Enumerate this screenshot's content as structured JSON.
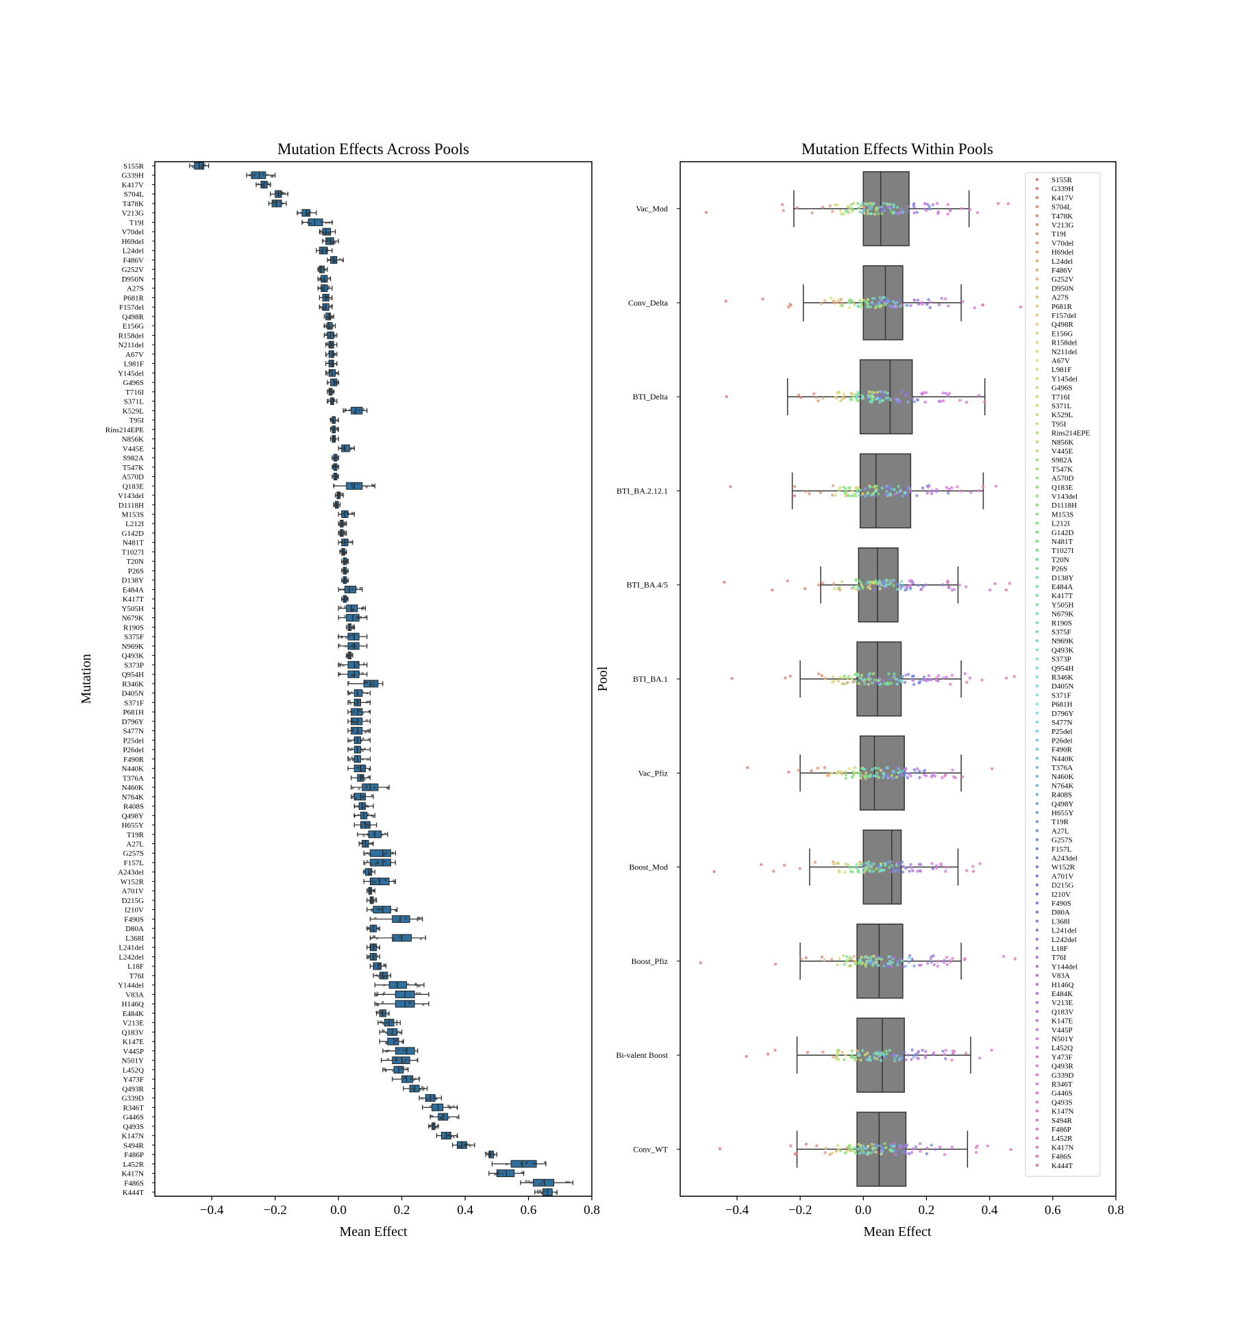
{
  "chart_data": [
    {
      "type": "box",
      "orientation": "horizontal",
      "title": "Mutation Effects Across Pools",
      "xlabel": "Mean Effect",
      "ylabel": "Mutation",
      "xlim": [
        -0.58,
        0.8
      ],
      "xticks": [
        -0.4,
        -0.2,
        0.0,
        0.2,
        0.4,
        0.6,
        0.8
      ],
      "box_color": "#2e6f9e",
      "categories": [
        "S155R",
        "G339H",
        "K417V",
        "S704L",
        "T478K",
        "V213G",
        "T19I",
        "V70del",
        "H69del",
        "L24del",
        "F486V",
        "G252V",
        "D950N",
        "A27S",
        "P681R",
        "F157del",
        "Q498R",
        "E156G",
        "R158del",
        "N211del",
        "A67V",
        "L981F",
        "Y145del",
        "G496S",
        "T716I",
        "S371L",
        "K529L",
        "T95I",
        "Rins214EPE",
        "N856K",
        "V445E",
        "S982A",
        "T547K",
        "A570D",
        "Q183E",
        "V143del",
        "D1118H",
        "M153S",
        "L212I",
        "G142D",
        "N481T",
        "T1027I",
        "T20N",
        "P26S",
        "D138Y",
        "E484A",
        "K417T",
        "Y505H",
        "N679K",
        "R190S",
        "S375F",
        "N969K",
        "Q493K",
        "S373P",
        "Q954H",
        "R346K",
        "D405N",
        "S371F",
        "P681H",
        "D796Y",
        "S477N",
        "P25del",
        "P26del",
        "F490R",
        "N440K",
        "T376A",
        "N460K",
        "N764K",
        "R408S",
        "Q498Y",
        "H655Y",
        "T19R",
        "A27L",
        "G257S",
        "F157L",
        "A243del",
        "W152R",
        "A701V",
        "D215G",
        "I210V",
        "F490S",
        "D80A",
        "L368I",
        "L241del",
        "L242del",
        "L18F",
        "T76I",
        "Y144del",
        "V83A",
        "H146Q",
        "E484K",
        "V213E",
        "Q183V",
        "K147E",
        "V445P",
        "N501Y",
        "L452Q",
        "Y473F",
        "Q493R",
        "G339D",
        "R346T",
        "G446S",
        "Q493S",
        "K147N",
        "S494R",
        "F486P",
        "L452R",
        "K417N",
        "F486S",
        "K444T"
      ],
      "medians": [
        -0.44,
        -0.25,
        -0.235,
        -0.19,
        -0.195,
        -0.1,
        -0.075,
        -0.04,
        -0.025,
        -0.05,
        -0.015,
        -0.055,
        -0.045,
        -0.045,
        -0.04,
        -0.04,
        -0.03,
        -0.03,
        -0.025,
        -0.025,
        -0.02,
        -0.02,
        -0.02,
        -0.015,
        -0.025,
        -0.02,
        0.055,
        -0.015,
        -0.015,
        -0.015,
        0.02,
        -0.01,
        -0.01,
        -0.01,
        0.05,
        0.0,
        -0.005,
        0.02,
        0.01,
        0.01,
        0.02,
        0.015,
        0.02,
        0.02,
        0.02,
        0.035,
        0.02,
        0.04,
        0.045,
        0.035,
        0.05,
        0.05,
        0.035,
        0.05,
        0.05,
        0.1,
        0.06,
        0.06,
        0.06,
        0.06,
        0.06,
        0.06,
        0.06,
        0.06,
        0.07,
        0.07,
        0.1,
        0.07,
        0.075,
        0.08,
        0.085,
        0.115,
        0.085,
        0.14,
        0.14,
        0.095,
        0.13,
        0.1,
        0.105,
        0.14,
        0.195,
        0.11,
        0.2,
        0.11,
        0.11,
        0.125,
        0.14,
        0.185,
        0.21,
        0.21,
        0.14,
        0.16,
        0.17,
        0.175,
        0.215,
        0.2,
        0.19,
        0.215,
        0.24,
        0.29,
        0.315,
        0.33,
        0.3,
        0.34,
        0.39,
        0.48,
        0.58,
        0.53,
        0.65,
        0.66
      ],
      "iqr_low": [
        -0.455,
        -0.275,
        -0.245,
        -0.2,
        -0.21,
        -0.115,
        -0.095,
        -0.05,
        -0.04,
        -0.06,
        -0.025,
        -0.06,
        -0.055,
        -0.055,
        -0.05,
        -0.05,
        -0.04,
        -0.035,
        -0.035,
        -0.03,
        -0.03,
        -0.03,
        -0.03,
        -0.025,
        -0.03,
        -0.025,
        0.04,
        -0.02,
        -0.02,
        -0.02,
        0.01,
        -0.015,
        -0.015,
        -0.015,
        0.025,
        -0.005,
        -0.01,
        0.01,
        0.005,
        0.005,
        0.01,
        0.01,
        0.015,
        0.015,
        0.015,
        0.02,
        0.015,
        0.025,
        0.025,
        0.03,
        0.03,
        0.03,
        0.03,
        0.03,
        0.03,
        0.08,
        0.05,
        0.05,
        0.04,
        0.04,
        0.04,
        0.05,
        0.05,
        0.05,
        0.05,
        0.06,
        0.075,
        0.05,
        0.065,
        0.07,
        0.07,
        0.095,
        0.075,
        0.1,
        0.1,
        0.085,
        0.1,
        0.095,
        0.1,
        0.11,
        0.17,
        0.1,
        0.17,
        0.1,
        0.1,
        0.11,
        0.13,
        0.16,
        0.18,
        0.18,
        0.13,
        0.145,
        0.155,
        0.155,
        0.18,
        0.17,
        0.175,
        0.2,
        0.225,
        0.275,
        0.295,
        0.315,
        0.295,
        0.325,
        0.375,
        0.475,
        0.545,
        0.5,
        0.615,
        0.645
      ],
      "iqr_high": [
        -0.425,
        -0.23,
        -0.225,
        -0.18,
        -0.18,
        -0.09,
        -0.05,
        -0.025,
        -0.015,
        -0.035,
        -0.005,
        -0.045,
        -0.035,
        -0.035,
        -0.03,
        -0.03,
        -0.025,
        -0.02,
        -0.015,
        -0.015,
        -0.015,
        -0.015,
        -0.01,
        -0.005,
        -0.02,
        -0.015,
        0.075,
        -0.01,
        -0.01,
        -0.01,
        0.035,
        -0.005,
        -0.005,
        -0.005,
        0.075,
        0.005,
        0.0,
        0.03,
        0.015,
        0.015,
        0.03,
        0.02,
        0.025,
        0.025,
        0.025,
        0.055,
        0.025,
        0.06,
        0.065,
        0.04,
        0.065,
        0.065,
        0.04,
        0.065,
        0.065,
        0.125,
        0.075,
        0.07,
        0.075,
        0.075,
        0.075,
        0.07,
        0.07,
        0.07,
        0.085,
        0.08,
        0.125,
        0.085,
        0.085,
        0.09,
        0.1,
        0.135,
        0.095,
        0.165,
        0.165,
        0.105,
        0.16,
        0.105,
        0.11,
        0.165,
        0.225,
        0.12,
        0.23,
        0.12,
        0.12,
        0.135,
        0.155,
        0.215,
        0.24,
        0.24,
        0.15,
        0.175,
        0.185,
        0.19,
        0.24,
        0.225,
        0.205,
        0.235,
        0.255,
        0.305,
        0.33,
        0.345,
        0.305,
        0.355,
        0.405,
        0.49,
        0.625,
        0.555,
        0.68,
        0.675
      ],
      "whisker_low": [
        -0.47,
        -0.29,
        -0.26,
        -0.215,
        -0.22,
        -0.13,
        -0.115,
        -0.06,
        -0.05,
        -0.07,
        -0.035,
        -0.065,
        -0.065,
        -0.065,
        -0.06,
        -0.06,
        -0.045,
        -0.045,
        -0.045,
        -0.04,
        -0.04,
        -0.04,
        -0.04,
        -0.035,
        -0.035,
        -0.035,
        0.015,
        -0.025,
        -0.025,
        -0.025,
        0.0,
        -0.02,
        -0.02,
        -0.02,
        -0.015,
        -0.01,
        -0.015,
        0.0,
        0.0,
        0.0,
        0.0,
        0.005,
        0.01,
        0.01,
        0.01,
        0.0,
        0.01,
        0.0,
        0.0,
        0.025,
        0.0,
        0.0,
        0.025,
        0.0,
        0.0,
        0.03,
        0.03,
        0.03,
        0.03,
        0.03,
        0.03,
        0.03,
        0.03,
        0.03,
        0.03,
        0.04,
        0.04,
        0.04,
        0.05,
        0.05,
        0.05,
        0.06,
        0.065,
        0.08,
        0.08,
        0.08,
        0.08,
        0.09,
        0.09,
        0.09,
        0.1,
        0.09,
        0.1,
        0.09,
        0.09,
        0.1,
        0.11,
        0.115,
        0.115,
        0.115,
        0.12,
        0.125,
        0.13,
        0.13,
        0.14,
        0.135,
        0.14,
        0.17,
        0.205,
        0.255,
        0.265,
        0.29,
        0.285,
        0.31,
        0.36,
        0.465,
        0.485,
        0.475,
        0.575,
        0.62
      ],
      "whisker_high": [
        -0.41,
        -0.2,
        -0.215,
        -0.16,
        -0.165,
        -0.07,
        -0.02,
        -0.01,
        0.0,
        -0.02,
        0.015,
        -0.035,
        -0.025,
        -0.02,
        -0.02,
        -0.02,
        -0.015,
        -0.01,
        -0.005,
        -0.005,
        -0.005,
        -0.005,
        0.0,
        0.0,
        -0.015,
        -0.005,
        0.09,
        0.0,
        0.0,
        0.0,
        0.05,
        0.0,
        0.0,
        0.0,
        0.115,
        0.015,
        0.005,
        0.05,
        0.025,
        0.025,
        0.045,
        0.025,
        0.03,
        0.03,
        0.03,
        0.075,
        0.03,
        0.085,
        0.09,
        0.05,
        0.09,
        0.09,
        0.045,
        0.09,
        0.09,
        0.14,
        0.1,
        0.1,
        0.1,
        0.1,
        0.1,
        0.1,
        0.1,
        0.1,
        0.1,
        0.1,
        0.16,
        0.11,
        0.11,
        0.115,
        0.12,
        0.155,
        0.11,
        0.18,
        0.18,
        0.115,
        0.18,
        0.115,
        0.12,
        0.185,
        0.265,
        0.13,
        0.275,
        0.13,
        0.13,
        0.15,
        0.165,
        0.27,
        0.285,
        0.285,
        0.16,
        0.195,
        0.2,
        0.205,
        0.25,
        0.25,
        0.22,
        0.255,
        0.28,
        0.325,
        0.375,
        0.38,
        0.315,
        0.375,
        0.43,
        0.5,
        0.655,
        0.585,
        0.74,
        0.69
      ]
    },
    {
      "type": "box",
      "orientation": "horizontal",
      "title": "Mutation Effects Within Pools",
      "xlabel": "Mean Effect",
      "ylabel": "Pool",
      "xlim": [
        -0.58,
        0.8
      ],
      "xticks": [
        -0.4,
        -0.2,
        0.0,
        0.2,
        0.4,
        0.6,
        0.8
      ],
      "box_color": "#808080",
      "legend": "right",
      "categories": [
        "Vac_Mod",
        "Conv_Delta",
        "BTI_Delta",
        "BTI_BA.2.12.1",
        "BTI_BA.4/5",
        "BTI_BA.1",
        "Vac_Pfiz",
        "Boost_Mod",
        "Boost_Pfiz",
        "Bi-valent Boost",
        "Conv_WT"
      ],
      "whisker_low": [
        -0.22,
        -0.19,
        -0.24,
        -0.225,
        -0.135,
        -0.2,
        -0.2,
        -0.17,
        -0.2,
        -0.21,
        -0.21
      ],
      "q1": [
        0.0,
        0.0,
        -0.01,
        -0.01,
        -0.015,
        -0.02,
        -0.01,
        0.0,
        -0.02,
        -0.02,
        -0.02
      ],
      "medians": [
        0.055,
        0.07,
        0.085,
        0.04,
        0.045,
        0.045,
        0.035,
        0.09,
        0.05,
        0.06,
        0.05
      ],
      "q3": [
        0.145,
        0.125,
        0.155,
        0.15,
        0.11,
        0.12,
        0.13,
        0.12,
        0.125,
        0.13,
        0.135
      ],
      "whisker_high": [
        0.335,
        0.31,
        0.385,
        0.38,
        0.3,
        0.31,
        0.31,
        0.3,
        0.31,
        0.34,
        0.33
      ]
    }
  ]
}
